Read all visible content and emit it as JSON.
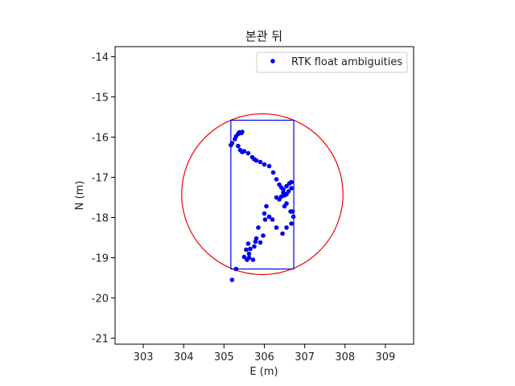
{
  "chart_data": {
    "type": "scatter",
    "title": "본관 뒤",
    "xlabel": "E (m)",
    "ylabel": "N (m)",
    "xlim": [
      302.3,
      309.7
    ],
    "ylim": [
      -21.15,
      -13.75
    ],
    "x_ticks": [
      303,
      304,
      305,
      306,
      307,
      308,
      309
    ],
    "y_ticks": [
      -14,
      -15,
      -16,
      -17,
      -18,
      -19,
      -20,
      -21
    ],
    "legend": {
      "placement": "top-right",
      "entries": [
        "RTK float ambiguities"
      ]
    },
    "colors": {
      "points": "#0000ee",
      "circle": "#ee0000",
      "box": "#0000ee"
    },
    "circle": {
      "center": [
        305.95,
        -17.42
      ],
      "radius": 2.0
    },
    "box": {
      "x": [
        305.17,
        306.73
      ],
      "y": [
        -19.28,
        -15.58
      ]
    },
    "series": [
      {
        "name": "RTK float ambiguities",
        "x": [
          305.17,
          305.2,
          305.27,
          305.3,
          305.35,
          305.38,
          305.43,
          305.45,
          305.35,
          305.4,
          305.45,
          305.5,
          305.6,
          305.7,
          305.75,
          305.8,
          305.9,
          306.0,
          306.12,
          306.22,
          306.3,
          306.37,
          306.42,
          306.47,
          306.55,
          306.62,
          306.67,
          306.67,
          306.6,
          306.55,
          306.5,
          306.47,
          306.42,
          306.37,
          306.3,
          306.55,
          306.5,
          306.65,
          306.7,
          306.72,
          306.67,
          306.55,
          306.45,
          306.3,
          306.2,
          306.12,
          306.05,
          306.0,
          306.02,
          305.85,
          305.8,
          305.78,
          305.97,
          305.9,
          305.75,
          305.6,
          305.65,
          305.55,
          305.62,
          305.5,
          305.62,
          305.57,
          305.72,
          305.3,
          305.2
        ],
        "y": [
          -16.2,
          -16.15,
          -16.05,
          -15.98,
          -15.92,
          -15.88,
          -15.9,
          -15.87,
          -16.22,
          -16.32,
          -16.37,
          -16.35,
          -16.4,
          -16.5,
          -16.55,
          -16.58,
          -16.62,
          -16.68,
          -16.72,
          -16.88,
          -17.05,
          -17.18,
          -17.25,
          -17.3,
          -17.22,
          -17.15,
          -17.12,
          -17.27,
          -17.35,
          -17.42,
          -17.45,
          -17.38,
          -17.48,
          -17.55,
          -17.5,
          -17.65,
          -17.72,
          -17.85,
          -17.85,
          -17.98,
          -18.15,
          -18.25,
          -18.4,
          -18.25,
          -18.05,
          -17.98,
          -17.72,
          -17.9,
          -18.05,
          -18.25,
          -18.52,
          -18.6,
          -18.45,
          -18.62,
          -18.72,
          -18.65,
          -18.78,
          -18.8,
          -18.9,
          -18.98,
          -19.0,
          -19.05,
          -19.05,
          -19.28,
          -19.55
        ]
      }
    ]
  }
}
